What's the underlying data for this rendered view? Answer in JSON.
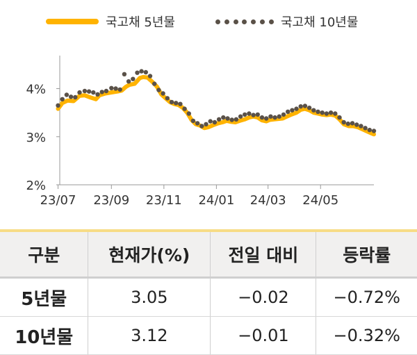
{
  "chart_data": {
    "type": "line",
    "legend": [
      "국고채 5년물",
      "국고채 10년물"
    ],
    "y_ticks": [
      "2%",
      "3%",
      "4%"
    ],
    "x_ticks": [
      "23/07",
      "23/09",
      "23/11",
      "24/01",
      "24/03",
      "24/05"
    ],
    "ylim": [
      2.0,
      4.6
    ],
    "x_range": [
      "2023-07-03",
      "2024-07-02"
    ],
    "series": [
      {
        "name": "국고채 5년물",
        "color": "#FFB300",
        "style": "solid",
        "points": [
          [
            "2023-07-01",
            3.58
          ],
          [
            "2023-07-06",
            3.7
          ],
          [
            "2023-07-12",
            3.75
          ],
          [
            "2023-07-19",
            3.74
          ],
          [
            "2023-07-26",
            3.85
          ],
          [
            "2023-08-01",
            3.86
          ],
          [
            "2023-08-07",
            3.82
          ],
          [
            "2023-08-14",
            3.78
          ],
          [
            "2023-08-18",
            3.86
          ],
          [
            "2023-08-25",
            3.9
          ],
          [
            "2023-09-01",
            3.92
          ],
          [
            "2023-09-08",
            3.94
          ],
          [
            "2023-09-13",
            3.96
          ],
          [
            "2023-09-18",
            4.04
          ],
          [
            "2023-09-22",
            4.08
          ],
          [
            "2023-09-28",
            4.1
          ],
          [
            "2023-10-04",
            4.22
          ],
          [
            "2023-10-08",
            4.24
          ],
          [
            "2023-10-13",
            4.23
          ],
          [
            "2023-10-18",
            4.15
          ],
          [
            "2023-10-24",
            4.04
          ],
          [
            "2023-10-29",
            3.88
          ],
          [
            "2023-11-03",
            3.8
          ],
          [
            "2023-11-08",
            3.72
          ],
          [
            "2023-11-13",
            3.68
          ],
          [
            "2023-11-18",
            3.66
          ],
          [
            "2023-11-23",
            3.6
          ],
          [
            "2023-11-28",
            3.5
          ],
          [
            "2023-12-03",
            3.35
          ],
          [
            "2023-12-08",
            3.26
          ],
          [
            "2023-12-13",
            3.23
          ],
          [
            "2023-12-18",
            3.18
          ],
          [
            "2023-12-23",
            3.2
          ],
          [
            "2023-12-28",
            3.24
          ],
          [
            "2024-01-03",
            3.28
          ],
          [
            "2024-01-08",
            3.3
          ],
          [
            "2024-01-13",
            3.33
          ],
          [
            "2024-01-18",
            3.31
          ],
          [
            "2024-01-23",
            3.3
          ],
          [
            "2024-01-28",
            3.33
          ],
          [
            "2024-02-03",
            3.36
          ],
          [
            "2024-02-08",
            3.4
          ],
          [
            "2024-02-13",
            3.42
          ],
          [
            "2024-02-18",
            3.4
          ],
          [
            "2024-02-23",
            3.34
          ],
          [
            "2024-02-28",
            3.32
          ],
          [
            "2024-03-03",
            3.35
          ],
          [
            "2024-03-08",
            3.36
          ],
          [
            "2024-03-13",
            3.37
          ],
          [
            "2024-03-18",
            3.38
          ],
          [
            "2024-03-23",
            3.42
          ],
          [
            "2024-03-28",
            3.46
          ],
          [
            "2024-04-03",
            3.5
          ],
          [
            "2024-04-08",
            3.56
          ],
          [
            "2024-04-13",
            3.58
          ],
          [
            "2024-04-18",
            3.55
          ],
          [
            "2024-04-23",
            3.5
          ],
          [
            "2024-04-28",
            3.48
          ],
          [
            "2024-05-03",
            3.46
          ],
          [
            "2024-05-08",
            3.45
          ],
          [
            "2024-05-13",
            3.46
          ],
          [
            "2024-05-18",
            3.44
          ],
          [
            "2024-05-23",
            3.36
          ],
          [
            "2024-05-28",
            3.26
          ],
          [
            "2024-06-03",
            3.22
          ],
          [
            "2024-06-08",
            3.22
          ],
          [
            "2024-06-13",
            3.2
          ],
          [
            "2024-06-18",
            3.16
          ],
          [
            "2024-06-23",
            3.12
          ],
          [
            "2024-06-28",
            3.08
          ],
          [
            "2024-07-02",
            3.05
          ]
        ]
      },
      {
        "name": "국고채 10년물",
        "color": "#5a5148",
        "style": "dotted",
        "points": [
          [
            "2023-07-01",
            3.65
          ],
          [
            "2023-07-06",
            3.78
          ],
          [
            "2023-07-11",
            3.87
          ],
          [
            "2023-07-16",
            3.83
          ],
          [
            "2023-07-21",
            3.82
          ],
          [
            "2023-07-26",
            3.92
          ],
          [
            "2023-08-01",
            3.95
          ],
          [
            "2023-08-06",
            3.94
          ],
          [
            "2023-08-11",
            3.92
          ],
          [
            "2023-08-16",
            3.88
          ],
          [
            "2023-08-21",
            3.93
          ],
          [
            "2023-08-26",
            3.95
          ],
          [
            "2023-09-01",
            4.01
          ],
          [
            "2023-09-06",
            4.0
          ],
          [
            "2023-09-11",
            3.98
          ],
          [
            "2023-09-16",
            4.3
          ],
          [
            "2023-09-21",
            4.15
          ],
          [
            "2023-09-26",
            4.2
          ],
          [
            "2023-10-01",
            4.33
          ],
          [
            "2023-10-06",
            4.36
          ],
          [
            "2023-10-11",
            4.34
          ],
          [
            "2023-10-16",
            4.26
          ],
          [
            "2023-10-21",
            4.1
          ],
          [
            "2023-10-26",
            3.97
          ],
          [
            "2023-10-31",
            3.9
          ],
          [
            "2023-11-05",
            3.8
          ],
          [
            "2023-11-10",
            3.72
          ],
          [
            "2023-11-15",
            3.7
          ],
          [
            "2023-11-20",
            3.68
          ],
          [
            "2023-11-25",
            3.58
          ],
          [
            "2023-11-30",
            3.48
          ],
          [
            "2023-12-05",
            3.33
          ],
          [
            "2023-12-10",
            3.28
          ],
          [
            "2023-12-15",
            3.22
          ],
          [
            "2023-12-20",
            3.26
          ],
          [
            "2023-12-25",
            3.32
          ],
          [
            "2023-12-30",
            3.3
          ],
          [
            "2024-01-04",
            3.36
          ],
          [
            "2024-01-09",
            3.4
          ],
          [
            "2024-01-14",
            3.38
          ],
          [
            "2024-01-19",
            3.35
          ],
          [
            "2024-01-24",
            3.36
          ],
          [
            "2024-01-29",
            3.42
          ],
          [
            "2024-02-03",
            3.46
          ],
          [
            "2024-02-08",
            3.48
          ],
          [
            "2024-02-13",
            3.45
          ],
          [
            "2024-02-18",
            3.46
          ],
          [
            "2024-02-23",
            3.4
          ],
          [
            "2024-02-28",
            3.38
          ],
          [
            "2024-03-04",
            3.42
          ],
          [
            "2024-03-09",
            3.4
          ],
          [
            "2024-03-14",
            3.42
          ],
          [
            "2024-03-19",
            3.46
          ],
          [
            "2024-03-24",
            3.52
          ],
          [
            "2024-03-29",
            3.55
          ],
          [
            "2024-04-03",
            3.58
          ],
          [
            "2024-04-08",
            3.63
          ],
          [
            "2024-04-13",
            3.64
          ],
          [
            "2024-04-18",
            3.6
          ],
          [
            "2024-04-23",
            3.55
          ],
          [
            "2024-04-28",
            3.52
          ],
          [
            "2024-05-03",
            3.5
          ],
          [
            "2024-05-08",
            3.48
          ],
          [
            "2024-05-13",
            3.5
          ],
          [
            "2024-05-18",
            3.48
          ],
          [
            "2024-05-23",
            3.4
          ],
          [
            "2024-05-28",
            3.3
          ],
          [
            "2024-06-02",
            3.27
          ],
          [
            "2024-06-07",
            3.28
          ],
          [
            "2024-06-12",
            3.25
          ],
          [
            "2024-06-17",
            3.22
          ],
          [
            "2024-06-22",
            3.18
          ],
          [
            "2024-06-27",
            3.14
          ],
          [
            "2024-07-02",
            3.12
          ]
        ]
      }
    ]
  },
  "table": {
    "headers": [
      "구분",
      "현재가(%)",
      "전일 대비",
      "등락률"
    ],
    "rows": [
      [
        "5년물",
        "3.05",
        "−0.02",
        "−0.72%"
      ],
      [
        "10년물",
        "3.12",
        "−0.01",
        "−0.32%"
      ]
    ]
  }
}
